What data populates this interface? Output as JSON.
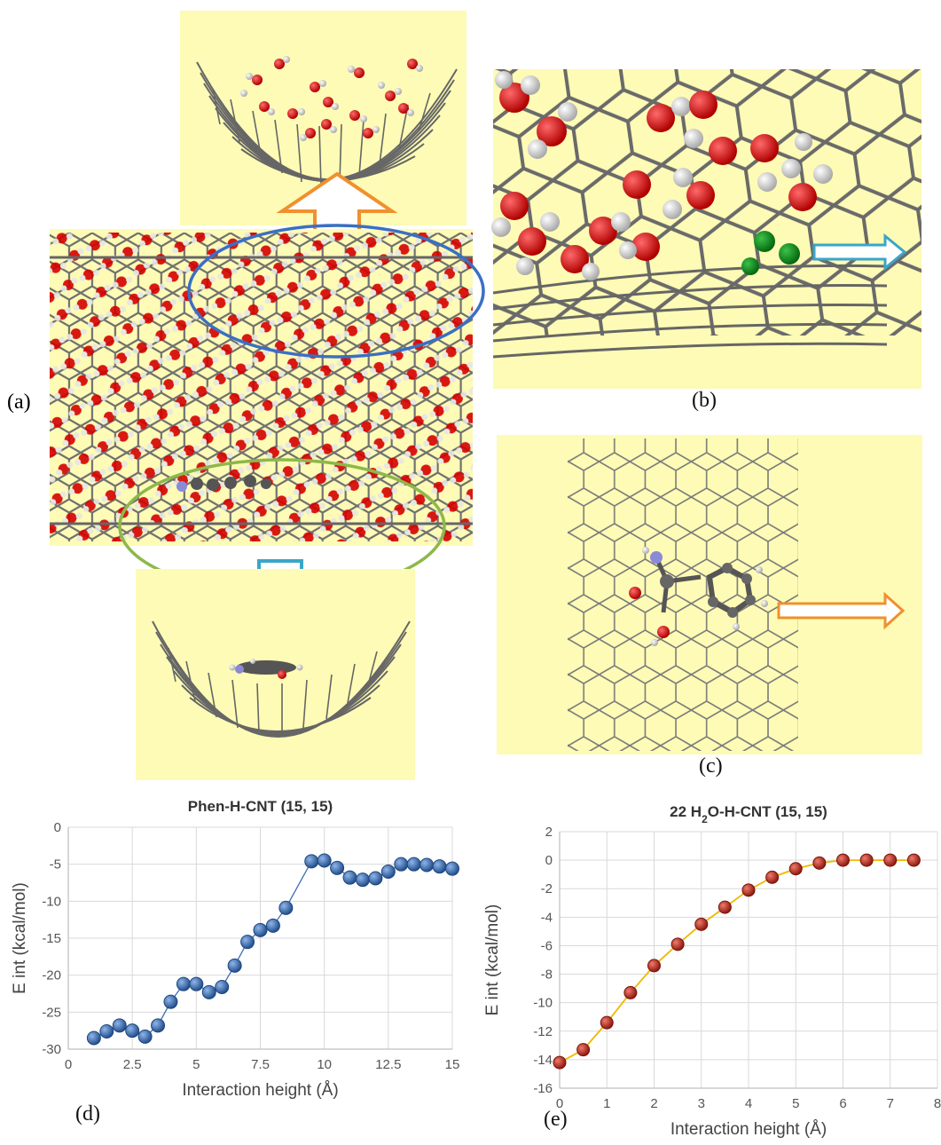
{
  "panels": {
    "a_label": "(a)",
    "b_label": "(b)",
    "c_label": "(c)",
    "d_label": "(d)",
    "e_label": "(e)"
  },
  "colors": {
    "background_yellow": "#fdfbb5",
    "carbon": "#6b6b6b",
    "oxygen": "#d40000",
    "hydrogen": "#e6e6e6",
    "nitrogen": "#8a8ad8",
    "chlorine_green": "#0a8a1a",
    "ellipse_blue": "#3a6fc4",
    "ellipse_green": "#8db84a",
    "arrow_orange": "#f0902e",
    "arrow_cyan": "#3aa6c8",
    "series_blue": "#3a6db0",
    "series_red": "#b52a1e",
    "line_gold": "#f0b800"
  },
  "chart_data": [
    {
      "type": "line",
      "title": "Phen-H-CNT (15, 15)",
      "xlabel": "Interaction height (Å)",
      "ylabel": "E int (kcal/mol)",
      "xlim": [
        0,
        15
      ],
      "ylim": [
        -30,
        0
      ],
      "xticks": [
        "0",
        "2.5",
        "5",
        "7.5",
        "10",
        "12.5",
        "15"
      ],
      "yticks": [
        "0",
        "-5",
        "-10",
        "-15",
        "-20",
        "-25",
        "-30"
      ],
      "grid": true,
      "x": [
        1,
        1.5,
        2,
        2.5,
        3,
        3.5,
        4,
        4.5,
        5,
        5.5,
        6,
        6.5,
        7,
        7.5,
        8,
        8.5,
        9.5,
        10,
        10.5,
        11,
        11.5,
        12,
        12.5,
        13,
        13.5,
        14,
        14.5,
        15
      ],
      "y": [
        -28.5,
        -27.6,
        -26.8,
        -27.5,
        -28.3,
        -26.8,
        -23.6,
        -21.2,
        -21.2,
        -22.3,
        -21.6,
        -18.7,
        -15.5,
        -13.9,
        -13.3,
        -10.9,
        -4.6,
        -4.5,
        -5.5,
        -6.8,
        -7.1,
        -6.9,
        -6.0,
        -5.0,
        -5.0,
        -5.1,
        -5.3,
        -5.6
      ]
    },
    {
      "type": "line",
      "title_prefix": "22 H",
      "title_sub": "2",
      "title_suffix": "O-H-CNT (15, 15)",
      "xlabel": "Interaction height (Å)",
      "ylabel": "E int (kcal/mol)",
      "xlim": [
        0,
        8
      ],
      "ylim": [
        -16,
        2
      ],
      "xticks": [
        "0",
        "1",
        "2",
        "3",
        "4",
        "5",
        "6",
        "7",
        "8"
      ],
      "yticks": [
        "2",
        "0",
        "-2",
        "-4",
        "-6",
        "-8",
        "-10",
        "-12",
        "-14",
        "-16"
      ],
      "grid": true,
      "x": [
        0,
        0.5,
        1,
        1.5,
        2,
        2.5,
        3,
        3.5,
        4,
        4.5,
        5,
        5.5,
        6,
        6.5,
        7,
        7.5
      ],
      "y": [
        -14.2,
        -13.3,
        -11.4,
        -9.3,
        -7.4,
        -5.9,
        -4.5,
        -3.3,
        -2.1,
        -1.2,
        -0.6,
        -0.2,
        0.0,
        0.0,
        0.0,
        0.0
      ]
    }
  ]
}
